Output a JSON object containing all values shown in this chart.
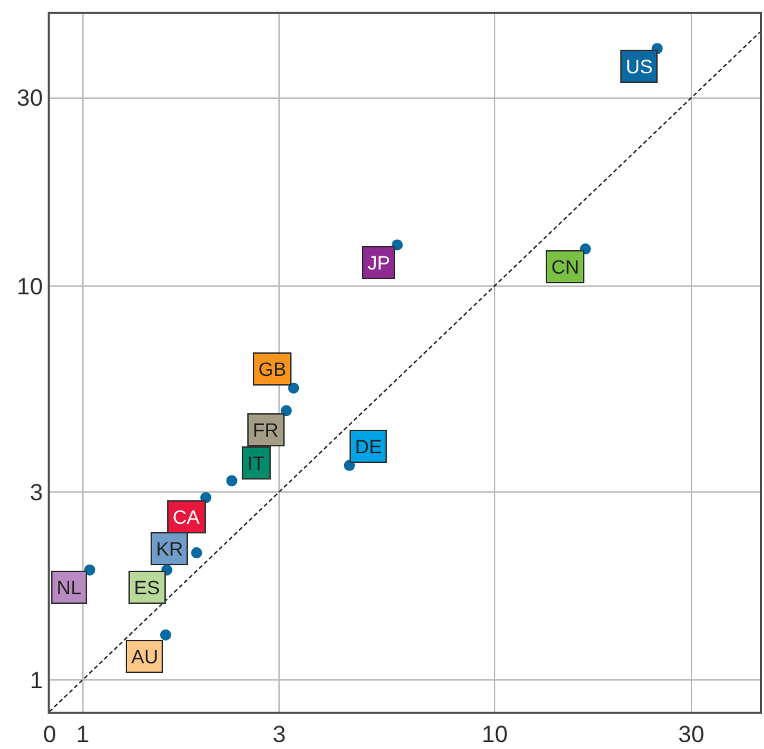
{
  "chart_data": {
    "type": "scatter",
    "log": "xy",
    "grid": true,
    "marker": "circle",
    "xlim": [
      0,
      44
    ],
    "ylim": [
      0.83,
      49
    ],
    "xticks": [
      0,
      1,
      3,
      10,
      30
    ],
    "yticks": [
      1,
      3,
      10,
      30
    ],
    "series": [
      {
        "color": "#0b6aa2",
        "x": [
          24.8,
          5.8,
          16.6,
          3.25,
          3.12,
          4.44,
          2.3,
          1.99,
          1.89,
          1.6,
          1.04,
          1.59
        ],
        "values": [
          40,
          12.7,
          12.4,
          5.5,
          4.82,
          3.5,
          3.2,
          2.9,
          2.1,
          1.9,
          1.9,
          1.3
        ],
        "value_labels": [
          "US",
          "JP",
          "CN",
          "GB",
          "FR",
          "DE",
          "IT",
          "CA",
          "KR",
          "ES",
          "NL",
          "AU"
        ]
      },
      {
        "type": "line",
        "color": "#222222",
        "line_style": "dashed",
        "marker": "none",
        "x": [
          0.83,
          44
        ],
        "values": [
          0.83,
          44
        ]
      }
    ]
  }
}
